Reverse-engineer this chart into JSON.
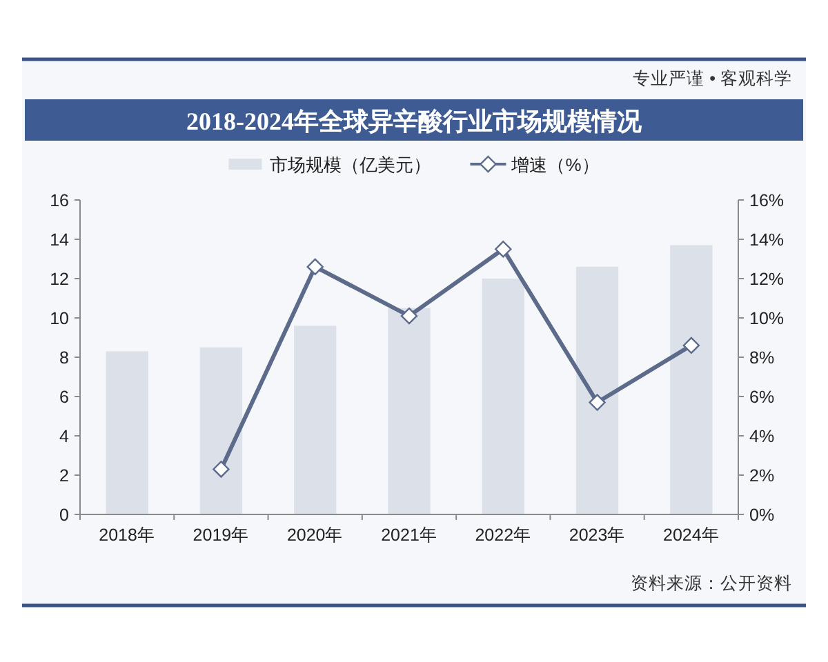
{
  "chart_data": {
    "type": "bar",
    "title": "2018-2024年全球异辛酸行业市场规模情况",
    "categories": [
      "2018年",
      "2019年",
      "2020年",
      "2021年",
      "2022年",
      "2023年",
      "2024年"
    ],
    "series": [
      {
        "name": "市场规模（亿美元）",
        "color": "#dce0e9",
        "values": [
          8.3,
          8.5,
          9.6,
          10.5,
          12.0,
          12.6,
          13.7
        ]
      },
      {
        "name": "增速（%）",
        "type": "line",
        "axis": "y2",
        "color": "#5d6b8b",
        "marker": "diamond",
        "values": [
          null,
          2.3,
          12.6,
          10.1,
          13.5,
          5.7,
          8.6
        ]
      }
    ],
    "ylim": [
      0,
      16
    ],
    "yticks": [
      0,
      2,
      4,
      6,
      8,
      10,
      12,
      14,
      16
    ],
    "y2lim": [
      0,
      16
    ],
    "y2ticks": [
      {
        "value": 0,
        "label": "0%"
      },
      {
        "value": 2,
        "label": "2%"
      },
      {
        "value": 4,
        "label": "4%"
      },
      {
        "value": 6,
        "label": "6%"
      },
      {
        "value": 8,
        "label": "8%"
      },
      {
        "value": 10,
        "label": "10%"
      },
      {
        "value": 12,
        "label": "12%"
      },
      {
        "value": 14,
        "label": "14%"
      },
      {
        "value": 16,
        "label": "16%"
      }
    ],
    "legend": "top",
    "annotations": [
      "专业严谨 • 客观科学",
      "资料来源：公开资料"
    ]
  }
}
